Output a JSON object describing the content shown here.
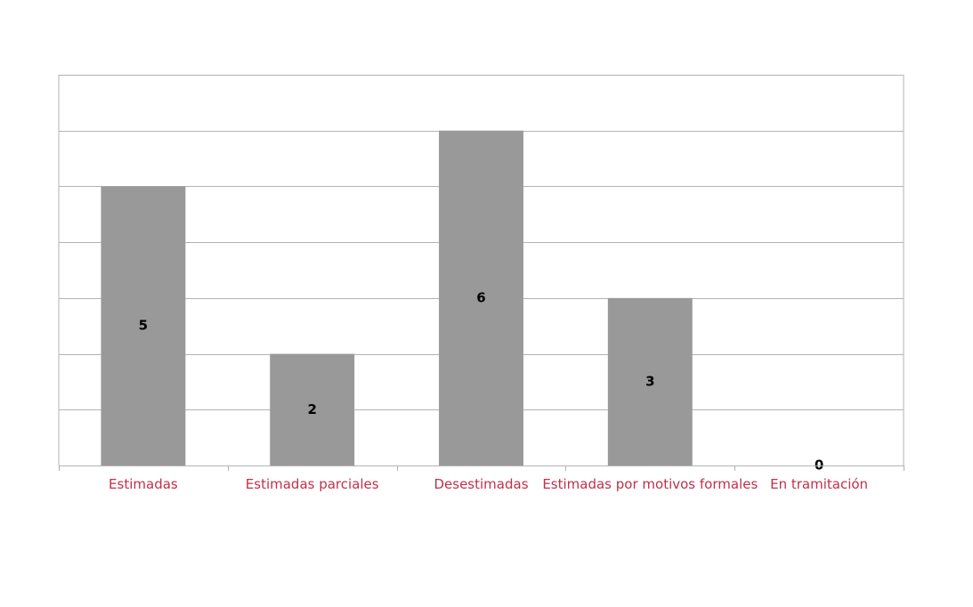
{
  "chart_data": {
    "type": "bar",
    "categories": [
      "Estimadas",
      "Estimadas parciales",
      "Desestimadas",
      "Estimadas por motivos formales",
      "En tramitación"
    ],
    "values": [
      5,
      2,
      6,
      3,
      0
    ],
    "data_labels": [
      "5",
      "2",
      "6",
      "3",
      "0"
    ],
    "title": "",
    "xlabel": "",
    "ylabel": "",
    "ylim": [
      0,
      7
    ],
    "y_tick_step": 1,
    "grid": true,
    "legend": "none"
  },
  "colors": {
    "bar": "#999999",
    "grid": "#b3b3b3",
    "category_label": "#c0304a",
    "data_label": "#000000"
  }
}
